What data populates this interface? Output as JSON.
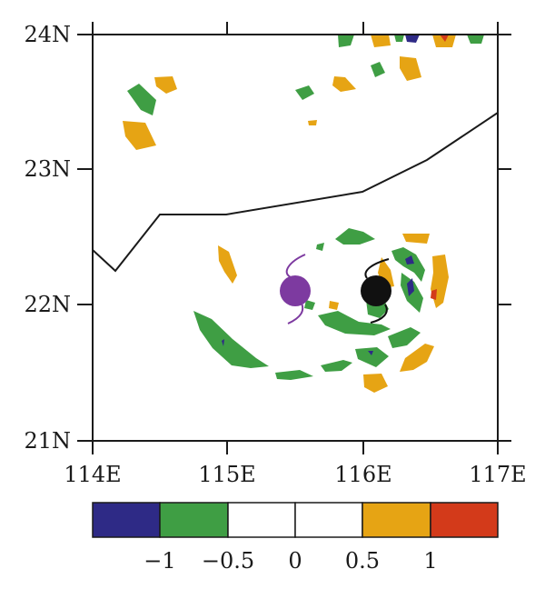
{
  "map": {
    "lon_range": [
      114,
      117
    ],
    "lat_range": [
      21,
      24
    ],
    "x_tick_labels": [
      "114E",
      "115E",
      "116E",
      "117E"
    ],
    "y_tick_labels": [
      "21N",
      "22N",
      "23N",
      "24N"
    ],
    "colors": {
      "lt_neg1": "#2e2a86",
      "neg1_to_neg05": "#3f9e44",
      "neg05_to_0": "#ffffff",
      "zero_to_05": "#ffffff",
      "p05_to_1": "#e6a414",
      "gt1": "#d33a1a",
      "coast": "#1a1a1a",
      "marker_purple": "#7d3aa0",
      "marker_black": "#111111"
    },
    "markers": [
      {
        "name": "purple-marker",
        "lon": 115.5,
        "lat": 22.1
      },
      {
        "name": "black-marker",
        "lon": 116.1,
        "lat": 22.1
      }
    ]
  },
  "colorbar": {
    "colors": [
      "#2e2a86",
      "#3f9e44",
      "#ffffff",
      "#ffffff",
      "#e6a414",
      "#d33a1a"
    ],
    "labels": [
      "−1",
      "−0.5",
      "0",
      "0.5",
      "1"
    ]
  }
}
